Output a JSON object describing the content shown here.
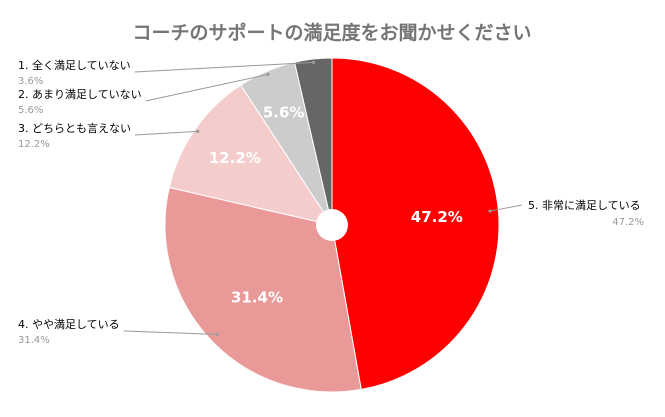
{
  "chart_data": {
    "type": "pie",
    "title": "コーチのサポートの満足度をお聞かせください",
    "slices": [
      {
        "label": "5. 非常に満足している",
        "value": 47.2,
        "display": "47.2%",
        "color": "#ff0000"
      },
      {
        "label": "4. やや満足している",
        "value": 31.4,
        "display": "31.4%",
        "color": "#ea9999"
      },
      {
        "label": "3. どちらとも言えない",
        "value": 12.2,
        "display": "12.2%",
        "color": "#f4cccc"
      },
      {
        "label": "2. あまり満足していない",
        "value": 5.6,
        "display": "5.6%",
        "color": "#cccccc"
      },
      {
        "label": "1. 全く満足していない",
        "value": 3.6,
        "display": "3.6%",
        "color": "#666666"
      }
    ]
  }
}
